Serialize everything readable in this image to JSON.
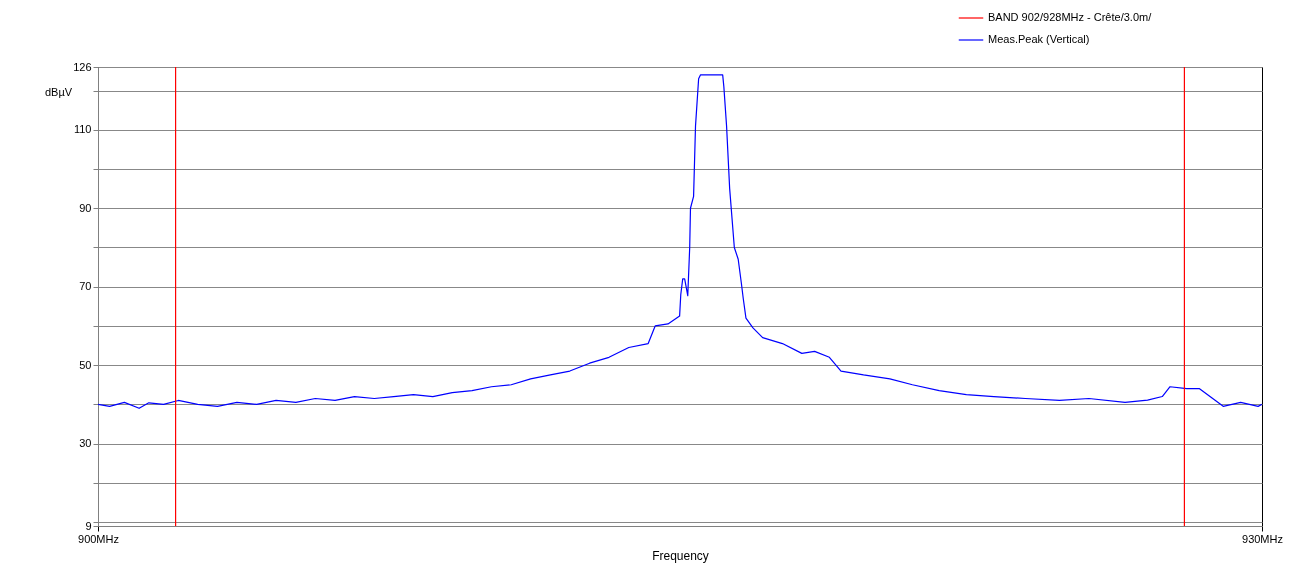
{
  "chart_data": {
    "type": "line",
    "xlabel": "Frequency",
    "ylabel": "dBµV",
    "xlim": [
      900,
      930
    ],
    "xticks": [
      {
        "value": 900,
        "label": "900MHz"
      },
      {
        "value": 930,
        "label": "930MHz"
      }
    ],
    "ylim": [
      9,
      126
    ],
    "yticks": [
      9,
      {
        "value": 10,
        "label": null
      },
      {
        "value": 20,
        "label": null
      },
      30,
      {
        "value": 40,
        "label": null
      },
      50,
      {
        "value": 60,
        "label": null
      },
      70,
      {
        "value": 80,
        "label": null
      },
      90,
      {
        "value": 100,
        "label": null
      },
      110,
      {
        "value": 120,
        "label": null
      },
      126
    ],
    "ref_lines": [
      {
        "axis": "x",
        "value": 902,
        "label": "BAND 902/928MHz  - Crête/3.0m/",
        "color": "#ff0000"
      },
      {
        "axis": "x",
        "value": 928,
        "label": null,
        "color": "#ff0000"
      }
    ],
    "grid": "y",
    "legend": "top right",
    "marker": "none",
    "line_style": "solid",
    "series": [
      {
        "name": "Meas.Peak (Vertical)",
        "color": "#0000ff",
        "x": [
          900.0,
          900.3,
          900.68,
          901.06,
          901.31,
          901.69,
          902.07,
          902.57,
          903.08,
          903.58,
          904.09,
          904.59,
          905.1,
          905.6,
          906.11,
          906.61,
          907.12,
          907.62,
          908.13,
          908.63,
          909.13,
          909.64,
          910.14,
          910.65,
          911.15,
          911.66,
          912.16,
          912.67,
          913.17,
          913.68,
          914.18,
          914.36,
          914.69,
          914.99,
          915.02,
          915.07,
          915.12,
          915.2,
          915.25,
          915.27,
          915.35,
          915.4,
          915.48,
          915.53,
          916.1,
          916.13,
          916.2,
          916.28,
          916.4,
          916.5,
          916.58,
          916.63,
          916.7,
          916.88,
          917.13,
          917.64,
          918.14,
          918.47,
          918.85,
          919.15,
          919.73,
          920.41,
          920.99,
          921.68,
          922.38,
          923.09,
          923.9,
          924.78,
          925.54,
          926.47,
          927.05,
          927.43,
          927.63,
          928.06,
          928.39,
          929.0,
          929.45,
          929.9,
          930.0
        ],
        "values": [
          40,
          39.5,
          40.5,
          39,
          40.4,
          40,
          41,
          40,
          39.5,
          40.5,
          40,
          41,
          40.5,
          41.5,
          41,
          42,
          41.5,
          42,
          42.5,
          42,
          43,
          43.5,
          44.5,
          45,
          46.5,
          47.5,
          48.5,
          50.5,
          52,
          54.5,
          55.5,
          60,
          60.5,
          62.5,
          68,
          72,
          72,
          67.7,
          80,
          90,
          93,
          111,
          123,
          124,
          124,
          121,
          111,
          95,
          80,
          77,
          71,
          67,
          62,
          59.5,
          57,
          55.5,
          53,
          53.5,
          52,
          48.5,
          47.5,
          46.5,
          45,
          43.5,
          42.5,
          42,
          41.5,
          41,
          41.5,
          40.5,
          41.1,
          42,
          44.5,
          44,
          44,
          39.5,
          40.5,
          39.5,
          40
        ]
      }
    ]
  }
}
